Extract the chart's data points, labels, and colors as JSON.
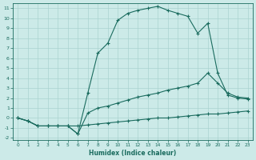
{
  "xlabel": "Humidex (Indice chaleur)",
  "bg_color": "#cceae8",
  "grid_color": "#aad4d0",
  "line_color": "#1a6b5e",
  "xlim": [
    -0.5,
    23.5
  ],
  "ylim": [
    -2.2,
    11.5
  ],
  "xticks": [
    0,
    1,
    2,
    3,
    4,
    5,
    6,
    7,
    8,
    9,
    10,
    11,
    12,
    13,
    14,
    15,
    16,
    17,
    18,
    19,
    20,
    21,
    22,
    23
  ],
  "yticks": [
    -2,
    -1,
    0,
    1,
    2,
    3,
    4,
    5,
    6,
    7,
    8,
    9,
    10,
    11
  ],
  "series": [
    {
      "x": [
        0,
        1,
        2,
        3,
        4,
        5,
        6,
        7,
        8,
        9,
        10,
        11,
        12,
        13,
        14,
        15,
        16,
        17,
        18,
        19,
        20,
        21,
        22,
        23
      ],
      "y": [
        0,
        -0.3,
        -0.8,
        -0.8,
        -0.8,
        -0.8,
        -0.8,
        -0.7,
        -0.6,
        -0.5,
        -0.4,
        -0.3,
        -0.2,
        -0.1,
        0.0,
        0.0,
        0.1,
        0.2,
        0.3,
        0.4,
        0.4,
        0.5,
        0.6,
        0.7
      ]
    },
    {
      "x": [
        0,
        1,
        2,
        3,
        4,
        5,
        6,
        7,
        8,
        9,
        10,
        11,
        12,
        13,
        14,
        15,
        16,
        17,
        18,
        19,
        20,
        21,
        22,
        23
      ],
      "y": [
        0,
        -0.3,
        -0.8,
        -0.8,
        -0.8,
        -0.8,
        -1.6,
        0.5,
        1.0,
        1.2,
        1.5,
        1.8,
        2.1,
        2.3,
        2.5,
        2.8,
        3.0,
        3.2,
        3.5,
        4.5,
        3.5,
        2.5,
        2.1,
        2.0
      ]
    },
    {
      "x": [
        0,
        1,
        2,
        3,
        4,
        5,
        6,
        7,
        8,
        9,
        10,
        11,
        12,
        13,
        14,
        15,
        16,
        17,
        18,
        19,
        20,
        21,
        22,
        23
      ],
      "y": [
        0,
        -0.3,
        -0.8,
        -0.8,
        -0.8,
        -0.8,
        -1.6,
        2.5,
        6.5,
        7.5,
        9.8,
        10.5,
        10.8,
        11.0,
        11.2,
        10.8,
        10.5,
        10.2,
        8.5,
        9.5,
        4.5,
        2.3,
        2.0,
        1.9
      ]
    }
  ]
}
